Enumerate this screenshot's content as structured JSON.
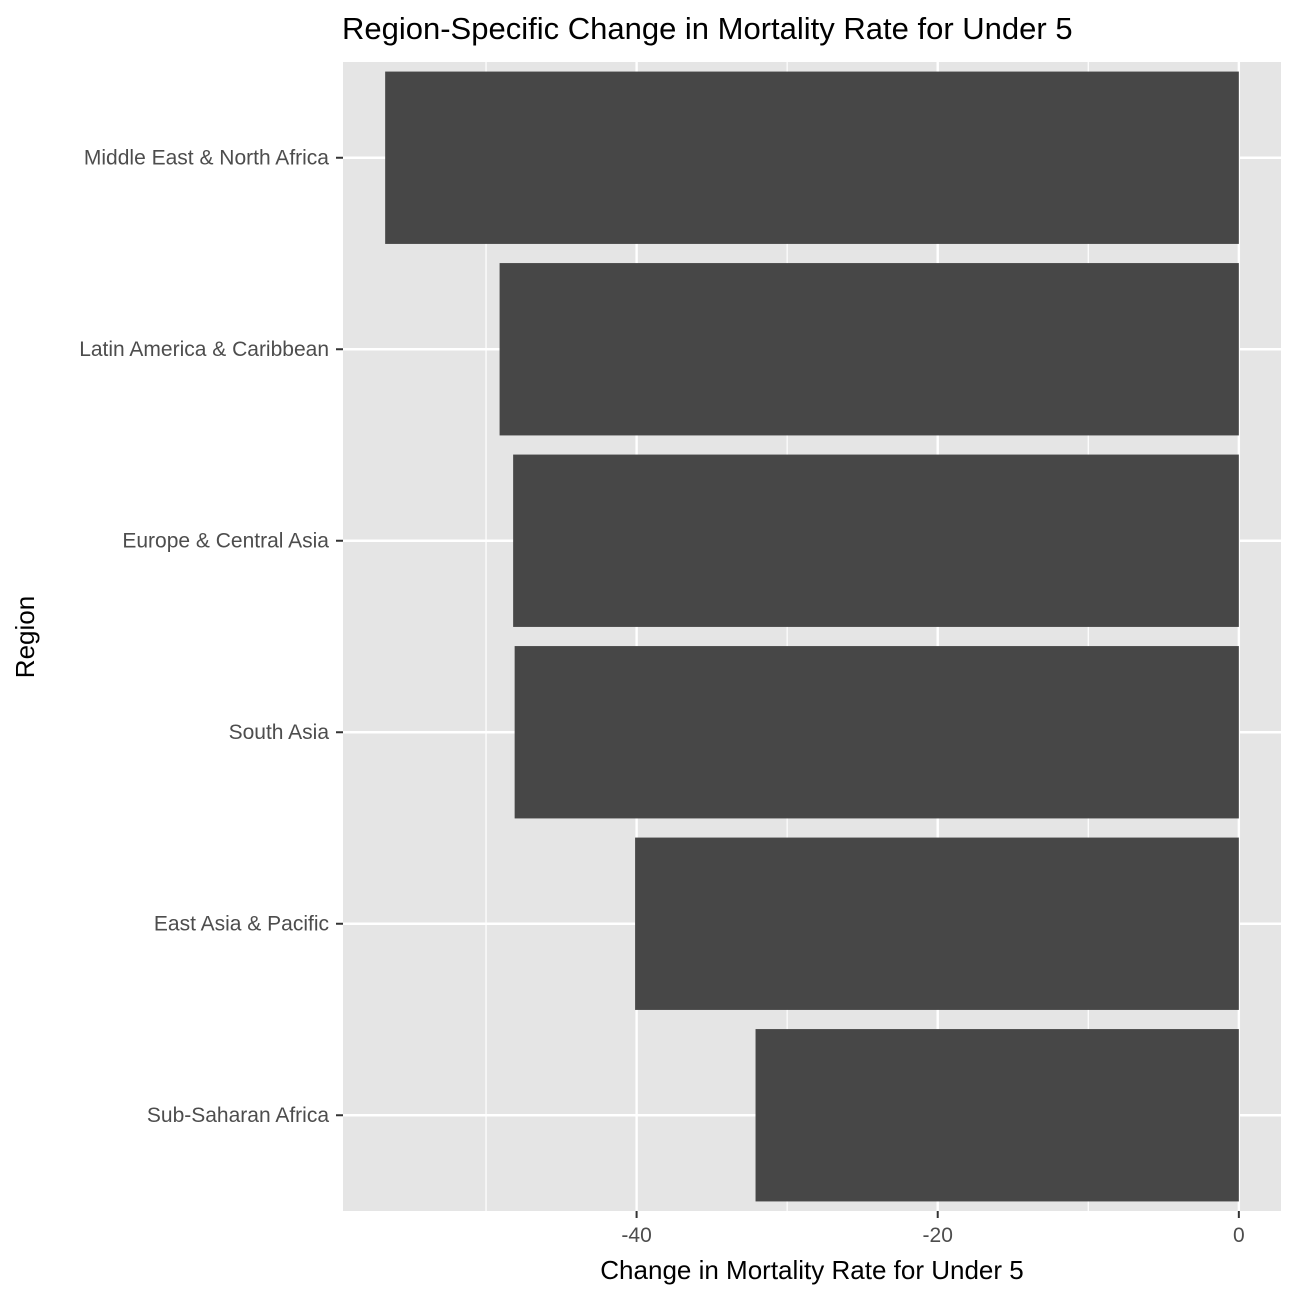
{
  "chart_data": {
    "type": "bar",
    "orientation": "horizontal",
    "title": "Region-Specific Change in Mortality Rate for Under 5",
    "xlabel": "Change in Mortality Rate for Under 5",
    "ylabel": "Region",
    "categories": [
      "Middle East & North Africa",
      "Latin America & Caribbean",
      "Europe & Central Asia",
      "South Asia",
      "East Asia & Pacific",
      "Sub-Saharan Africa"
    ],
    "values": [
      -56.7,
      -49.1,
      -48.2,
      -48.1,
      -40.1,
      -32.1
    ],
    "xlim": [
      -59.5,
      2.8
    ],
    "xticks": [
      -40,
      -20,
      0
    ],
    "xtick_labels": [
      "-40",
      "-20",
      "0"
    ],
    "grid": true,
    "panel_background": "#e5e5e5",
    "bar_color": "#474747",
    "grid_color": "#ffffff"
  }
}
